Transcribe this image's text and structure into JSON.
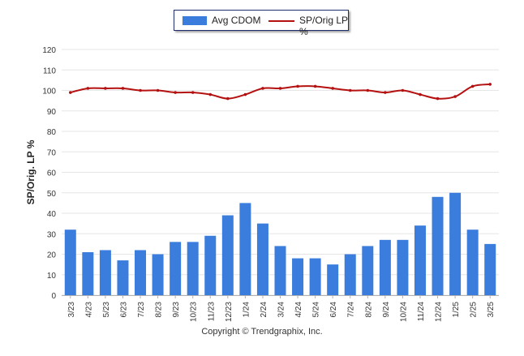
{
  "chart_data": {
    "type": "bar",
    "categories": [
      "3/23",
      "4/23",
      "5/23",
      "6/23",
      "7/23",
      "8/23",
      "9/23",
      "10/23",
      "11/23",
      "12/23",
      "1/24",
      "2/24",
      "3/24",
      "4/24",
      "5/24",
      "6/24",
      "7/24",
      "8/24",
      "9/24",
      "10/24",
      "11/24",
      "12/24",
      "1/25",
      "2/25",
      "3/25"
    ],
    "series": [
      {
        "name": "Avg CDOM",
        "type": "bar",
        "color": "#3b7ddd",
        "values": [
          32,
          21,
          22,
          17,
          22,
          20,
          26,
          26,
          29,
          39,
          45,
          35,
          24,
          18,
          18,
          15,
          20,
          24,
          27,
          27,
          34,
          48,
          50,
          32,
          25
        ]
      },
      {
        "name": "SP/Orig LP %",
        "type": "line",
        "color": "#b51111",
        "values": [
          99,
          101,
          101,
          101,
          100,
          100,
          99,
          99,
          98,
          96,
          98,
          101,
          101,
          102,
          102,
          101,
          100,
          100,
          99,
          100,
          98,
          96,
          97,
          102,
          103
        ]
      }
    ],
    "ylabel": "SP/Orig. LP %",
    "ylim": [
      0,
      120
    ],
    "yticks": [
      0,
      10,
      20,
      30,
      40,
      50,
      60,
      70,
      80,
      90,
      100,
      110,
      120
    ],
    "grid": true,
    "legend_position": "top-center"
  },
  "footer": {
    "copyright": "Copyright © Trendgraphix, Inc."
  }
}
